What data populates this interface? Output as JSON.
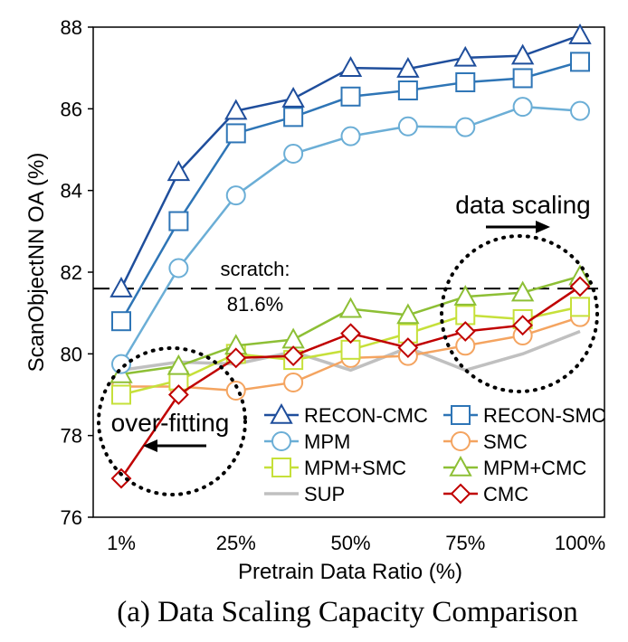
{
  "chart_data": {
    "type": "line",
    "title": "",
    "caption": "(a) Data Scaling Capacity Comparison",
    "xlabel": "Pretrain Data Ratio (%)",
    "ylabel": "ScanObjectNN OA (%)",
    "x_tick_labels": [
      "1%",
      "25%",
      "50%",
      "75%",
      "100%"
    ],
    "y_tick_labels": [
      "76",
      "78",
      "80",
      "82",
      "84",
      "86",
      "88"
    ],
    "ylim": [
      76,
      88
    ],
    "x": [
      1,
      13.375,
      25.75,
      38.125,
      50.5,
      62.875,
      75.25,
      87.625,
      100
    ],
    "series": [
      {
        "name": "RECON-CMC",
        "color": "#1f4e9c",
        "marker": "triangle",
        "values": [
          81.6,
          84.45,
          85.95,
          86.25,
          87.0,
          86.98,
          87.25,
          87.3,
          87.8
        ]
      },
      {
        "name": "RECON-SMC",
        "color": "#2e75b6",
        "marker": "square",
        "values": [
          80.8,
          83.25,
          85.4,
          85.8,
          86.3,
          86.45,
          86.65,
          86.75,
          87.15
        ]
      },
      {
        "name": "MPM",
        "color": "#6baed6",
        "marker": "circle",
        "values": [
          79.75,
          82.1,
          83.88,
          84.9,
          85.33,
          85.57,
          85.55,
          86.05,
          85.95
        ]
      },
      {
        "name": "SMC",
        "color": "#f4a460",
        "marker": "circle",
        "values": [
          79.2,
          79.2,
          79.1,
          79.3,
          79.9,
          79.95,
          80.2,
          80.45,
          80.9
        ]
      },
      {
        "name": "MPM+SMC",
        "color": "#c6e03a",
        "marker": "square",
        "values": [
          79.0,
          79.35,
          80.0,
          79.85,
          80.1,
          80.5,
          80.95,
          80.85,
          81.15
        ]
      },
      {
        "name": "MPM+CMC",
        "color": "#8dbf35",
        "marker": "triangle",
        "values": [
          79.5,
          79.7,
          80.2,
          80.35,
          81.1,
          80.95,
          81.4,
          81.5,
          81.9
        ]
      },
      {
        "name": "SUP",
        "color": "#c0c0c0",
        "marker": "none",
        "values": [
          79.6,
          79.8,
          79.75,
          80.05,
          79.6,
          80.15,
          79.6,
          80.0,
          80.55
        ]
      },
      {
        "name": "CMC",
        "color": "#c00000",
        "marker": "diamond",
        "values": [
          76.95,
          79.0,
          79.9,
          79.95,
          80.5,
          80.15,
          80.55,
          80.7,
          81.65
        ]
      }
    ],
    "reference_line": {
      "value": 81.6,
      "label_line1": "scratch:",
      "label_line2": "81.6%"
    },
    "annotations": {
      "data_scaling": "data scaling",
      "over_fitting": "over-fitting"
    },
    "legend": {
      "placement": "bottom-right",
      "columns": 2
    },
    "grid": false
  }
}
